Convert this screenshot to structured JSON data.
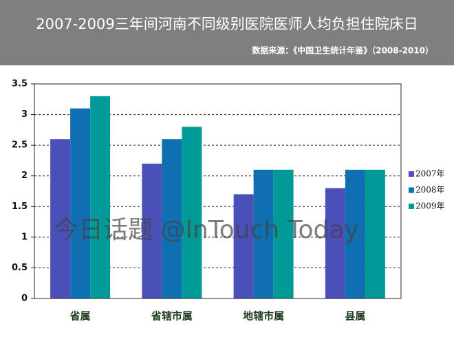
{
  "chart_data": {
    "type": "bar",
    "title": "2007-2009三年间河南不同级别医院医师人均负担住院床日",
    "subtitle": "数据来源：《中国卫生统计年鉴》（2008-2010）",
    "watermark": "今日话题 @InTouch Today",
    "categories": [
      "省属",
      "省辖市属",
      "地辖市属",
      "县属"
    ],
    "series": [
      {
        "name": "2007年",
        "color": "#4b4fb8",
        "values": [
          2.6,
          2.2,
          1.7,
          1.8
        ]
      },
      {
        "name": "2008年",
        "color": "#0f6fb0",
        "values": [
          3.1,
          2.6,
          2.1,
          2.1
        ]
      },
      {
        "name": "2009年",
        "color": "#009a98",
        "values": [
          3.3,
          2.8,
          2.1,
          2.1
        ]
      }
    ],
    "ylim": [
      0,
      3.5
    ],
    "yticks": [
      0,
      0.5,
      1,
      1.5,
      2,
      2.5,
      3,
      3.5
    ],
    "grid": true,
    "legend_position": "right"
  }
}
